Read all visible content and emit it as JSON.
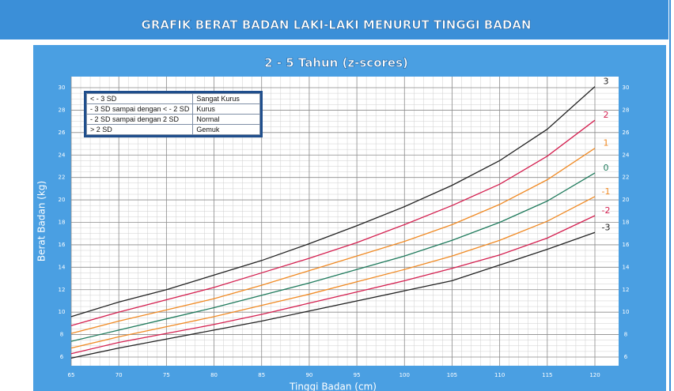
{
  "chart_data": {
    "type": "line",
    "title": "GRAFIK BERAT BADAN LAKI-LAKI MENURUT TINGGI BADAN",
    "subtitle": "2 - 5 Tahun (z-scores)",
    "x_label": "Tinggi Badan (cm)",
    "y_label": "Berat Badan (kg)",
    "x": [
      65,
      70,
      75,
      80,
      85,
      90,
      95,
      100,
      105,
      110,
      115,
      120
    ],
    "series": [
      {
        "name": "3",
        "color": "#222222",
        "values": [
          9.6,
          10.9,
          12.0,
          13.3,
          14.6,
          16.1,
          17.7,
          19.4,
          21.3,
          23.5,
          26.3,
          30.1
        ]
      },
      {
        "name": "2",
        "color": "#d41f4f",
        "values": [
          8.8,
          10.0,
          11.1,
          12.2,
          13.5,
          14.8,
          16.2,
          17.8,
          19.5,
          21.4,
          23.9,
          27.1
        ]
      },
      {
        "name": "1",
        "color": "#f08a24",
        "values": [
          8.1,
          9.2,
          10.2,
          11.2,
          12.4,
          13.7,
          15.0,
          16.3,
          17.8,
          19.6,
          21.8,
          24.6
        ]
      },
      {
        "name": "0",
        "color": "#1f7a5c",
        "values": [
          7.4,
          8.4,
          9.4,
          10.4,
          11.5,
          12.6,
          13.8,
          15.0,
          16.4,
          18.0,
          19.9,
          22.4
        ]
      },
      {
        "name": "-1",
        "color": "#f08a24",
        "values": [
          6.8,
          7.8,
          8.7,
          9.6,
          10.6,
          11.6,
          12.7,
          13.8,
          15.0,
          16.4,
          18.1,
          20.3
        ]
      },
      {
        "name": "-2",
        "color": "#d41f4f",
        "values": [
          6.3,
          7.3,
          8.1,
          8.9,
          9.8,
          10.8,
          11.8,
          12.8,
          13.9,
          15.1,
          16.6,
          18.6
        ]
      },
      {
        "name": "-3",
        "color": "#222222",
        "values": [
          5.9,
          6.8,
          7.6,
          8.4,
          9.2,
          10.1,
          11.0,
          11.9,
          12.8,
          14.2,
          15.6,
          17.1
        ]
      }
    ],
    "xlim": [
      65,
      120
    ],
    "xticks": [
      65,
      70,
      75,
      80,
      85,
      90,
      95,
      100,
      105,
      110,
      115,
      120
    ],
    "ylim": [
      6,
      30
    ],
    "yticks": [
      6,
      8,
      10,
      12,
      14,
      16,
      18,
      20,
      22,
      24,
      26,
      28,
      30
    ],
    "grid": true,
    "zones": [
      [
        "< - 3 SD",
        "Sangat Kurus"
      ],
      [
        "- 3 SD sampai dengan < - 2 SD",
        "Kurus"
      ],
      [
        "- 2 SD sampai dengan 2 SD",
        "Normal"
      ],
      [
        "> 2 SD",
        "Gemuk"
      ]
    ]
  }
}
